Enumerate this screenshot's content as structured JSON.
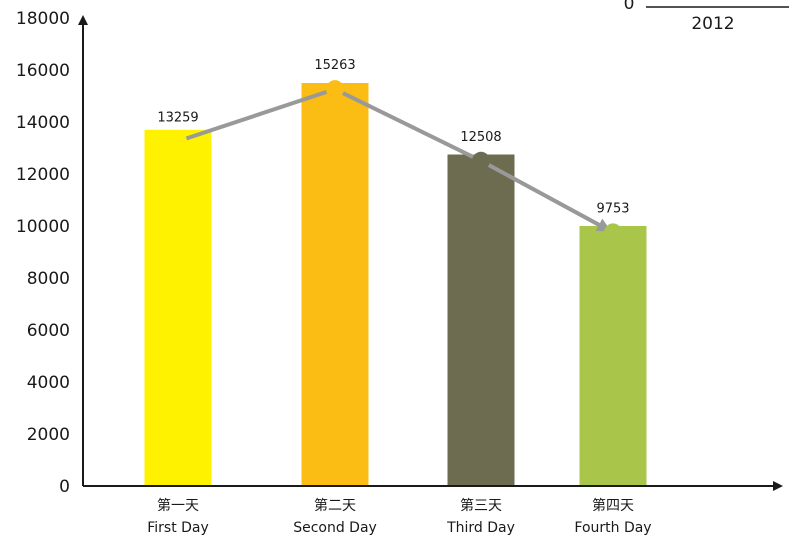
{
  "chart_data": {
    "type": "bar",
    "year_label": "2012",
    "legend_zero": "0",
    "ylim": [
      0,
      18000
    ],
    "yticks": [
      0,
      2000,
      4000,
      6000,
      8000,
      10000,
      12000,
      14000,
      16000,
      18000
    ],
    "categories": [
      {
        "cn": "第一天",
        "en": "First Day"
      },
      {
        "cn": "第二天",
        "en": "Second Day"
      },
      {
        "cn": "第三天",
        "en": "Third Day"
      },
      {
        "cn": "第四天",
        "en": "Fourth Day"
      }
    ],
    "bar_values": [
      13700,
      15500,
      12750,
      10000
    ],
    "bar_colors": [
      "#fff200",
      "#fbbd13",
      "#6d6c50",
      "#a9c64b"
    ],
    "line_values": [
      13259,
      15263,
      12508,
      9753
    ],
    "line_labels": [
      "13259",
      "15263",
      "12508",
      "9753"
    ],
    "point_colors": [
      "#fff200",
      "#fbbd13",
      "#6d6c50",
      "#a9c64b"
    ],
    "line_color": "#999999"
  }
}
